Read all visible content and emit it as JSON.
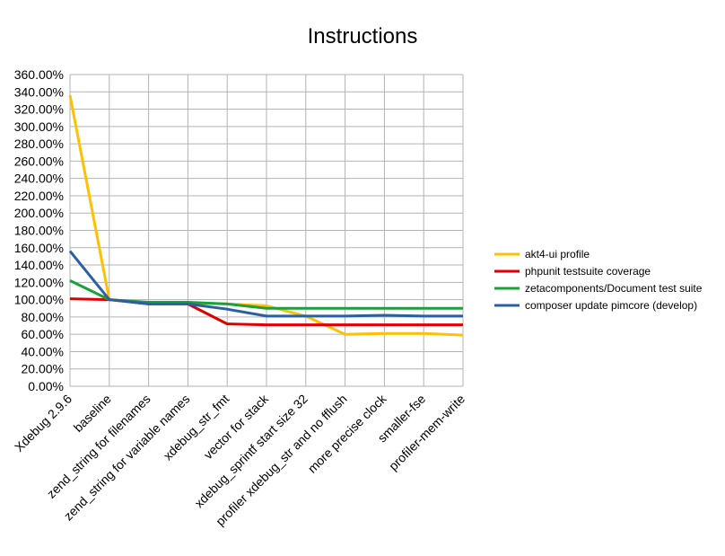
{
  "chart_data": {
    "type": "line",
    "title": "Instructions",
    "xlabel": "",
    "ylabel": "",
    "ylim": [
      0,
      3.6
    ],
    "ytick_step": 0.2,
    "ytick_format": "percent-2",
    "grid": true,
    "legend_position": "right",
    "categories": [
      "Xdebug 2.9.6",
      "baseline",
      "zend_string for filenames",
      "zend_string for variable names",
      "xdebug_str_fmt",
      "vector for stack",
      "xdebug_sprintf start size 32",
      "profiler xdebug_str and no fflush",
      "more precise clock",
      "smaller-fse",
      "profiler-mem-write"
    ],
    "series": [
      {
        "name": "akt4-ui profile",
        "color": "#ffc000",
        "values": [
          3.36,
          1.0,
          0.96,
          0.96,
          0.95,
          0.93,
          0.81,
          0.6,
          0.61,
          0.61,
          0.59
        ]
      },
      {
        "name": "phpunit testsuite coverage",
        "color": "#e00000",
        "values": [
          1.01,
          1.0,
          0.95,
          0.95,
          0.72,
          0.71,
          0.71,
          0.71,
          0.71,
          0.71,
          0.71
        ]
      },
      {
        "name": "zetacomponents/Document test suite",
        "color": "#1ca03c",
        "values": [
          1.22,
          1.0,
          0.97,
          0.97,
          0.95,
          0.9,
          0.9,
          0.9,
          0.9,
          0.9,
          0.9
        ]
      },
      {
        "name": "composer update pimcore (develop)",
        "color": "#2b5fa3",
        "values": [
          1.56,
          1.0,
          0.95,
          0.95,
          0.89,
          0.81,
          0.81,
          0.81,
          0.82,
          0.81,
          0.81
        ]
      }
    ]
  }
}
